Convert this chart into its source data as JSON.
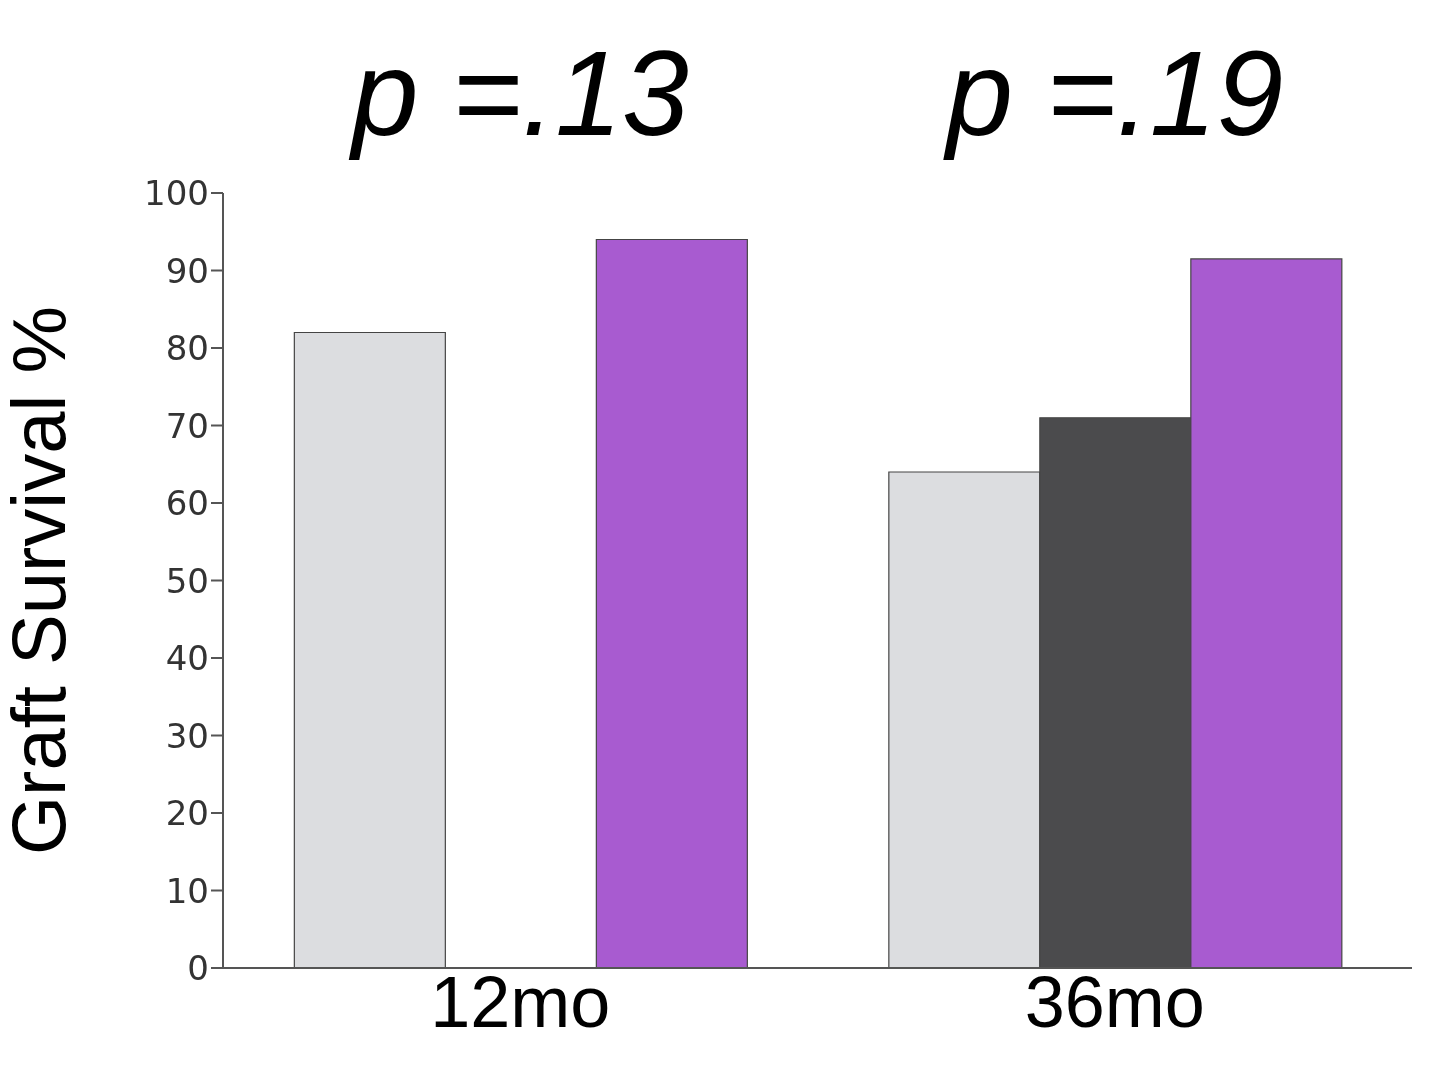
{
  "chart_data": {
    "type": "bar",
    "ylabel": "Graft Survival %",
    "categories": [
      "12mo",
      "36mo"
    ],
    "series": [
      {
        "color": "#dcdde0",
        "values": [
          82,
          64
        ]
      },
      {
        "color": "#4b4b4d",
        "values": [
          null,
          71
        ]
      },
      {
        "color": "#a85bd0",
        "values": [
          94,
          91.5
        ]
      }
    ],
    "ylim": [
      0,
      100
    ],
    "yticks": [
      0,
      10,
      20,
      30,
      40,
      50,
      60,
      70,
      80,
      90,
      100
    ],
    "grid": false,
    "legend": false,
    "annotations": [
      "p =.13",
      "p =.19"
    ]
  }
}
